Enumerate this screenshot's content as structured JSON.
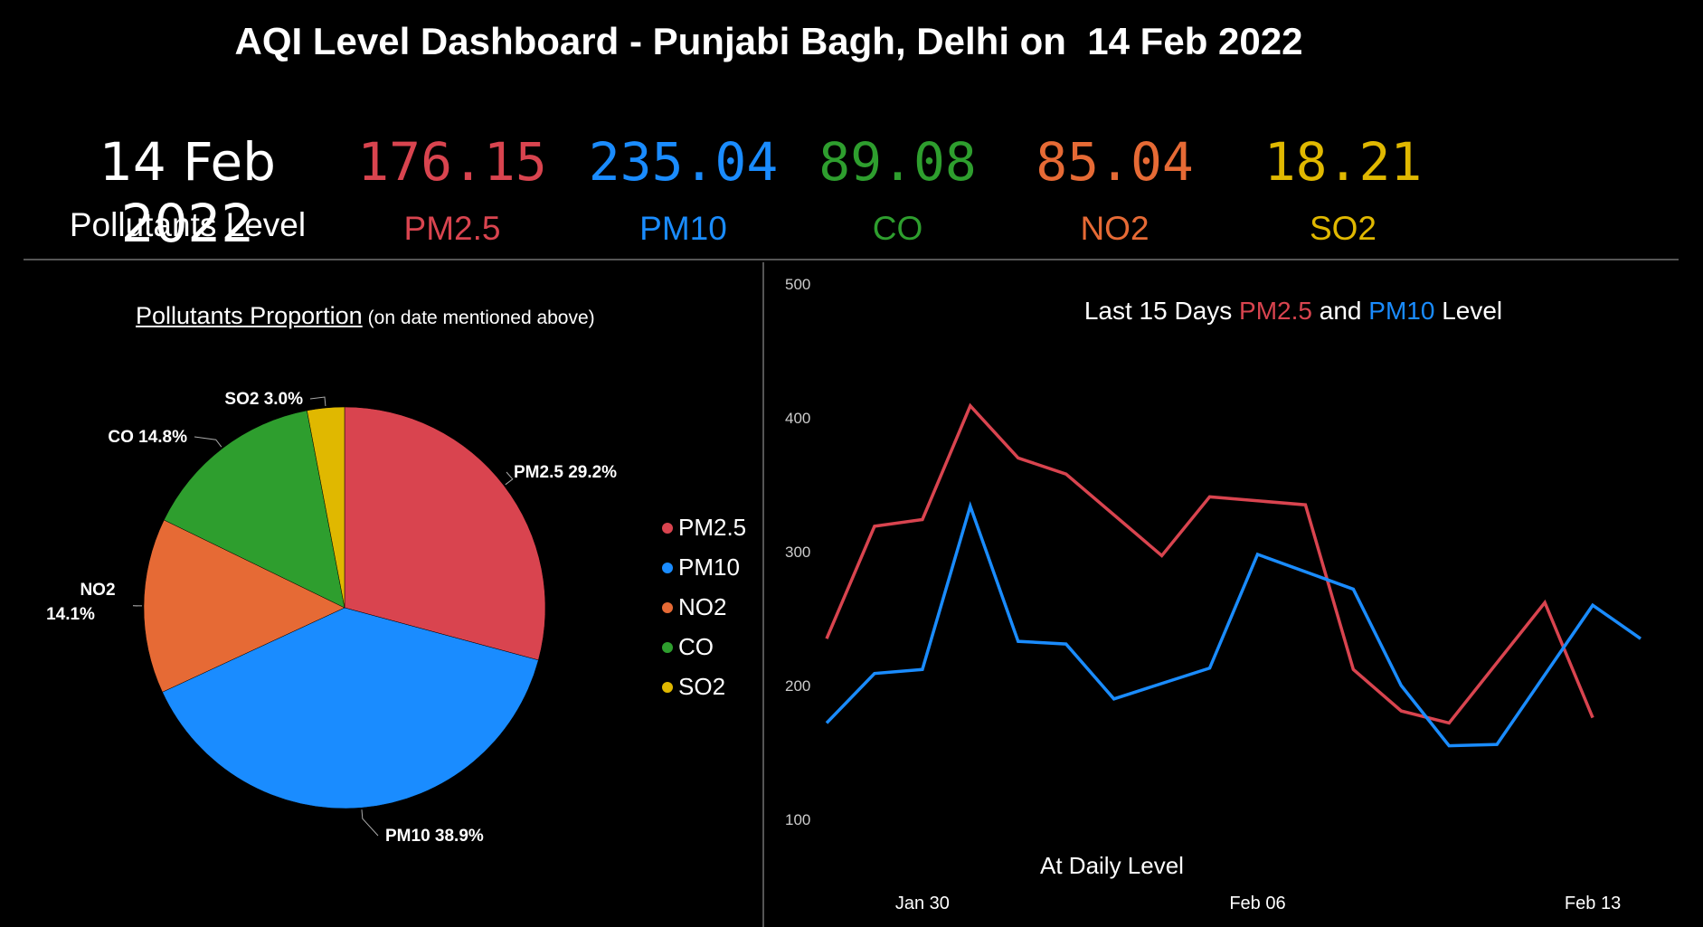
{
  "header": {
    "title": "AQI Level Dashboard - Punjabi Bagh, Delhi on  14 Feb 2022"
  },
  "kpis": {
    "date_value": "14 Feb 2022",
    "date_label": "Pollutants Level",
    "items": [
      {
        "value": "176.15",
        "label": "PM2.5",
        "color": "#d9444f"
      },
      {
        "value": "235.04",
        "label": "PM10",
        "color": "#1a8cff"
      },
      {
        "value": "89.08",
        "label": "CO",
        "color": "#2e9e2e"
      },
      {
        "value": "85.04",
        "label": "NO2",
        "color": "#e66a35"
      },
      {
        "value": "18.21",
        "label": "SO2",
        "color": "#e0b800"
      }
    ]
  },
  "pie": {
    "title": "Pollutants Proportion",
    "subtitle": "(on date mentioned above)"
  },
  "line": {
    "title_prefix": "Last 15 Days ",
    "title_s1": "PM2.5",
    "title_mid": " and ",
    "title_s2": "PM10",
    "title_suffix": " Level",
    "xlabel": "At Daily Level"
  },
  "chart_data": [
    {
      "type": "pie",
      "title": "Pollutants Proportion",
      "subtitle": "(on date mentioned above)",
      "slices": [
        {
          "name": "PM2.5",
          "percent": 29.2,
          "label": "PM2.5 29.2%",
          "color": "#d9444f"
        },
        {
          "name": "PM10",
          "percent": 38.9,
          "label": "PM10 38.9%",
          "color": "#1a8cff"
        },
        {
          "name": "NO2",
          "percent": 14.1,
          "label": "NO2 14.1%",
          "color": "#e66a35"
        },
        {
          "name": "CO",
          "percent": 14.8,
          "label": "CO 14.8%",
          "color": "#2e9e2e"
        },
        {
          "name": "SO2",
          "percent": 3.0,
          "label": "SO2 3.0%",
          "color": "#e0b800"
        }
      ],
      "legend": {
        "placement": "right",
        "entries": [
          "PM2.5",
          "PM10",
          "NO2",
          "CO",
          "SO2"
        ]
      }
    },
    {
      "type": "line",
      "title": "Last 15 Days PM2.5 and PM10 Level",
      "xlabel": "At Daily Level",
      "ylabel": "",
      "ylim": [
        100,
        500
      ],
      "yticks": [
        100,
        200,
        300,
        400,
        500
      ],
      "x": [
        "2022-01-30",
        "2022-01-31",
        "2022-02-01",
        "2022-02-02",
        "2022-02-03",
        "2022-02-04",
        "2022-02-05",
        "2022-02-06",
        "2022-02-07",
        "2022-02-08",
        "2022-02-09",
        "2022-02-10",
        "2022-02-11",
        "2022-02-12",
        "2022-02-13",
        "2022-02-14",
        "2022-02-15",
        "2022-02-16"
      ],
      "xticks": [
        {
          "x": "2022-02-01",
          "label": "Jan 30"
        },
        {
          "x": "2022-02-08",
          "label": "Feb 06"
        },
        {
          "x": "2022-02-15",
          "label": "Feb 13"
        }
      ],
      "series": [
        {
          "name": "PM2.5",
          "color": "#d9444f",
          "points": [
            [
              "2022-01-30",
              235
            ],
            [
              "2022-01-31",
              319
            ],
            [
              "2022-02-01",
              324
            ],
            [
              "2022-02-02",
              409
            ],
            [
              "2022-02-03",
              370
            ],
            [
              "2022-02-04",
              358
            ],
            [
              "2022-02-06",
              297
            ],
            [
              "2022-02-07",
              341
            ],
            [
              "2022-02-09",
              335
            ],
            [
              "2022-02-10",
              212
            ],
            [
              "2022-02-11",
              181
            ],
            [
              "2022-02-12",
              172
            ],
            [
              "2022-02-14",
              262
            ],
            [
              "2022-02-15",
              176
            ]
          ]
        },
        {
          "name": "PM10",
          "color": "#1a8cff",
          "points": [
            [
              "2022-01-30",
              172
            ],
            [
              "2022-01-31",
              209
            ],
            [
              "2022-02-01",
              212
            ],
            [
              "2022-02-02",
              334
            ],
            [
              "2022-02-03",
              233
            ],
            [
              "2022-02-04",
              231
            ],
            [
              "2022-02-05",
              190
            ],
            [
              "2022-02-07",
              213
            ],
            [
              "2022-02-08",
              298
            ],
            [
              "2022-02-10",
              272
            ],
            [
              "2022-02-11",
              200
            ],
            [
              "2022-02-12",
              155
            ],
            [
              "2022-02-13",
              156
            ],
            [
              "2022-02-15",
              260
            ],
            [
              "2022-02-16",
              235
            ]
          ]
        }
      ],
      "grid": false
    }
  ]
}
